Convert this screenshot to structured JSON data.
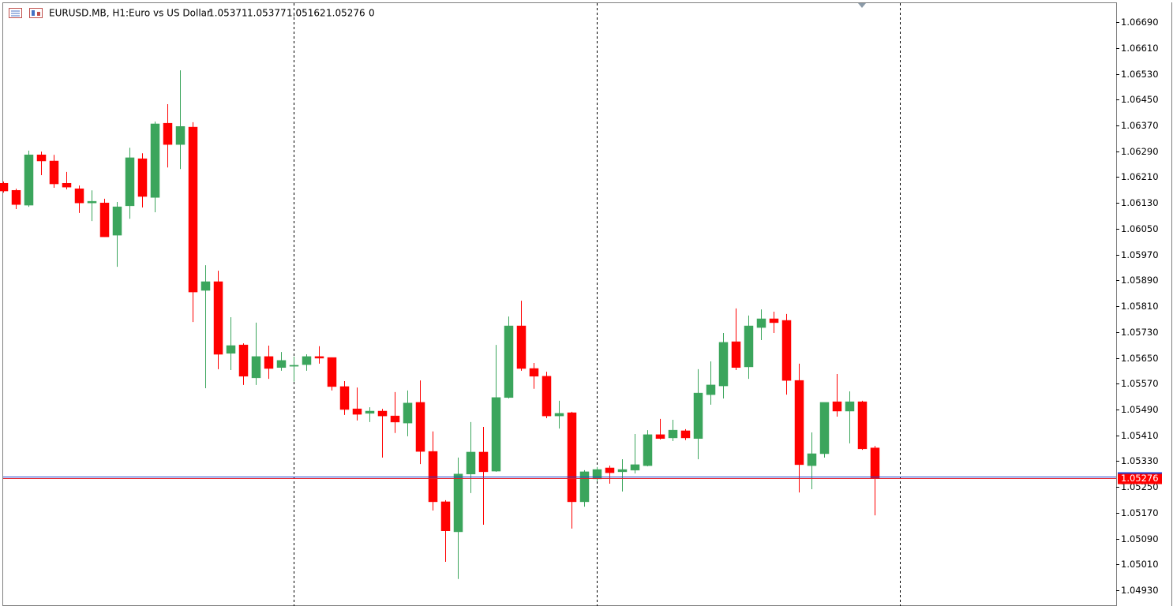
{
  "chart_data": {
    "type": "candlestick",
    "symbol": "EURUSD.MB, H1:",
    "description": "Euro vs US Dollar",
    "header_tail": "0",
    "bull_color": "#3ba55c",
    "bear_color": "#ff0000",
    "open": [
      1.06191,
      1.06169,
      1.06123,
      1.06279,
      1.0626,
      1.06191,
      1.06174,
      1.0613,
      1.0613,
      1.0603,
      1.06121,
      1.06267,
      1.06147,
      1.06377,
      1.06311,
      1.06365,
      1.05859,
      1.05886,
      1.05664,
      1.0569,
      1.05588,
      1.05654,
      1.0562,
      1.05624,
      1.05629,
      1.05654,
      1.05651,
      1.05561,
      1.05492,
      1.05478,
      1.05485,
      1.0547,
      1.05448,
      1.05512,
      1.0536,
      1.05204,
      1.05111,
      1.0529,
      1.05358,
      1.05299,
      1.05527,
      1.05749,
      1.05617,
      1.05593,
      1.0547,
      1.0548,
      1.05204,
      1.05275,
      1.05309,
      1.05297,
      1.05302,
      1.05316,
      1.05412,
      1.05402,
      1.05424,
      1.054,
      1.05536,
      1.05563,
      1.057,
      1.05622,
      1.05744,
      1.05771,
      1.05766,
      1.0558,
      1.05316,
      1.05353,
      1.05514,
      1.05485,
      1.05514,
      1.05371
    ],
    "high": [
      1.06196,
      1.06174,
      1.06292,
      1.06289,
      1.06279,
      1.06226,
      1.06184,
      1.06169,
      1.06143,
      1.06133,
      1.06301,
      1.06284,
      1.06382,
      1.06436,
      1.06541,
      1.0638,
      1.05937,
      1.0592,
      1.05776,
      1.05695,
      1.05759,
      1.05688,
      1.05668,
      1.05654,
      1.05661,
      1.05686,
      1.05651,
      1.05578,
      1.05558,
      1.05497,
      1.05492,
      1.05544,
      1.05549,
      1.0558,
      1.05422,
      1.05209,
      1.05341,
      1.05451,
      1.05436,
      1.0569,
      1.05778,
      1.05827,
      1.05634,
      1.05607,
      1.05517,
      1.05483,
      1.05302,
      1.05312,
      1.05316,
      1.05336,
      1.05414,
      1.05426,
      1.05461,
      1.05458,
      1.05429,
      1.05615,
      1.05639,
      1.05727,
      1.05803,
      1.05781,
      1.058,
      1.05793,
      1.05786,
      1.05632,
      1.05419,
      1.05512,
      1.056,
      1.05546,
      1.05517,
      1.05377
    ],
    "low": [
      1.06162,
      1.06111,
      1.06118,
      1.06216,
      1.06177,
      1.06172,
      1.06099,
      1.06074,
      1.06025,
      1.05932,
      1.06081,
      1.06116,
      1.06101,
      1.0624,
      1.06235,
      1.05761,
      1.05556,
      1.05615,
      1.05612,
      1.05566,
      1.05566,
      1.05585,
      1.0561,
      1.05576,
      1.0561,
      1.05632,
      1.05549,
      1.05473,
      1.05456,
      1.05451,
      1.05341,
      1.05417,
      1.05407,
      1.05321,
      1.05177,
      1.05018,
      1.04965,
      1.05231,
      1.05133,
      1.05297,
      1.05524,
      1.0561,
      1.05554,
      1.05463,
      1.05431,
      1.05121,
      1.05189,
      1.05268,
      1.0526,
      1.05236,
      1.05292,
      1.05314,
      1.05397,
      1.05392,
      1.05395,
      1.05336,
      1.05505,
      1.05524,
      1.05612,
      1.05585,
      1.05705,
      1.05727,
      1.05536,
      1.05233,
      1.05243,
      1.05341,
      1.05468,
      1.05385,
      1.05365,
      1.05162
    ],
    "close": [
      1.06167,
      1.06125,
      1.06279,
      1.0626,
      1.06189,
      1.06179,
      1.0613,
      1.06135,
      1.06025,
      1.06118,
      1.0627,
      1.0615,
      1.06375,
      1.06311,
      1.06367,
      1.05854,
      1.05886,
      1.05661,
      1.05688,
      1.05593,
      1.05654,
      1.05617,
      1.05642,
      1.05627,
      1.05654,
      1.05649,
      1.05561,
      1.0549,
      1.05475,
      1.05485,
      1.0547,
      1.05451,
      1.0551,
      1.0536,
      1.05204,
      1.05114,
      1.0529,
      1.05358,
      1.05297,
      1.05527,
      1.05749,
      1.05617,
      1.05593,
      1.0547,
      1.05478,
      1.05204,
      1.05297,
      1.05304,
      1.05294,
      1.05304,
      1.05319,
      1.05412,
      1.054,
      1.05426,
      1.05402,
      1.05541,
      1.05566,
      1.05698,
      1.0562,
      1.05749,
      1.05771,
      1.05759,
      1.0558,
      1.05319,
      1.05353,
      1.05512,
      1.05485,
      1.05514,
      1.05368,
      1.05276
    ],
    "bid": 1.05276,
    "ylim": [
      1.04886,
      1.06749
    ],
    "yticks": [
      {
        "value": 1.0669,
        "label": "1.06690"
      },
      {
        "value": 1.0661,
        "label": "1.06610"
      },
      {
        "value": 1.0653,
        "label": "1.06530"
      },
      {
        "value": 1.0645,
        "label": "1.06450"
      },
      {
        "value": 1.0637,
        "label": "1.06370"
      },
      {
        "value": 1.0629,
        "label": "1.06290"
      },
      {
        "value": 1.0621,
        "label": "1.06210"
      },
      {
        "value": 1.0613,
        "label": "1.06130"
      },
      {
        "value": 1.0605,
        "label": "1.06050"
      },
      {
        "value": 1.0597,
        "label": "1.05970"
      },
      {
        "value": 1.0589,
        "label": "1.05890"
      },
      {
        "value": 1.0581,
        "label": "1.05810"
      },
      {
        "value": 1.0573,
        "label": "1.05730"
      },
      {
        "value": 1.0565,
        "label": "1.05650"
      },
      {
        "value": 1.0557,
        "label": "1.05570"
      },
      {
        "value": 1.0549,
        "label": "1.05490"
      },
      {
        "value": 1.0541,
        "label": "1.05410"
      },
      {
        "value": 1.0533,
        "label": "1.05330"
      },
      {
        "value": 1.0525,
        "label": "1.05250"
      },
      {
        "value": 1.0517,
        "label": "1.05170"
      },
      {
        "value": 1.0509,
        "label": "1.05090"
      },
      {
        "value": 1.0501,
        "label": "1.05010"
      },
      {
        "value": 1.0493,
        "label": "1.04930"
      }
    ],
    "grid": false
  }
}
